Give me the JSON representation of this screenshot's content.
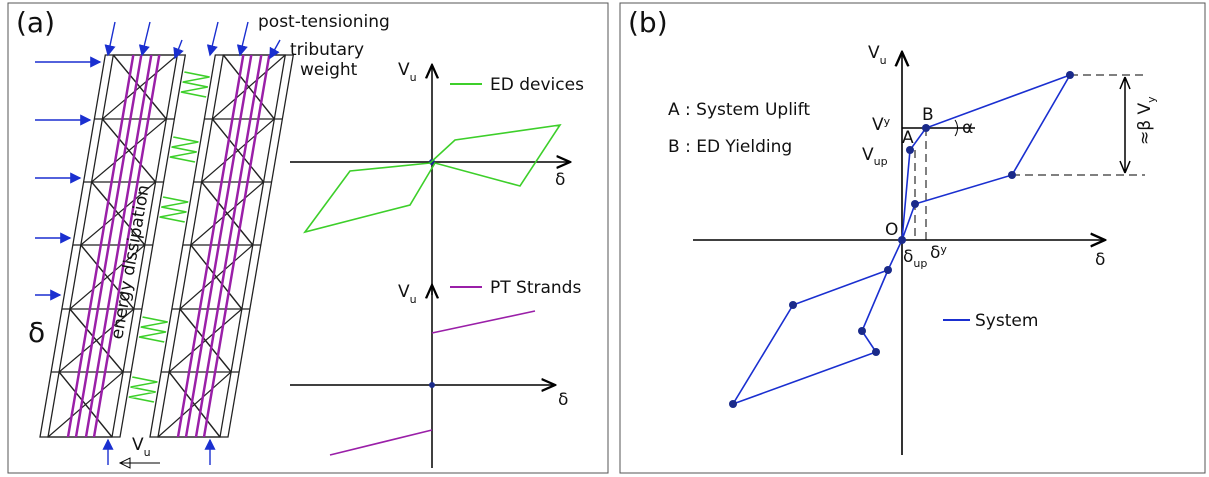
{
  "panel_a": {
    "label": "(a)",
    "post_tensioning": "post-tensioning",
    "tributary_line1": "tributary",
    "tributary_line2": "weight",
    "drift": "δ",
    "base_shear": {
      "symbol": "V",
      "subscript": "u"
    },
    "energy_dissipation": "energy dissipation",
    "ed_plot": {
      "y_label": {
        "symbol": "V",
        "subscript": "u"
      },
      "x_label": "δ",
      "legend": "ED devices"
    },
    "pt_plot": {
      "y_label": {
        "symbol": "V",
        "subscript": "u"
      },
      "x_label": "δ",
      "legend": "PT Strands"
    }
  },
  "panel_b": {
    "label": "(b)",
    "legend_a": "A : System Uplift",
    "legend_b": "B : ED Yielding",
    "y_label": {
      "symbol": "V",
      "subscript": "u"
    },
    "x_label": "δ",
    "vy": {
      "symbol": "V",
      "subscript": "y"
    },
    "vup": {
      "symbol": "V",
      "subscript": "up"
    },
    "point_a": "A",
    "point_b": "B",
    "alpha": "α",
    "origin": "O",
    "delta_up": {
      "symbol": "δ",
      "subscript": "up"
    },
    "delta_y": {
      "symbol": "δ",
      "subscript": "y"
    },
    "beta_vy": {
      "prefix": "≈β V",
      "subscript": "y"
    },
    "series_legend": "System"
  }
}
